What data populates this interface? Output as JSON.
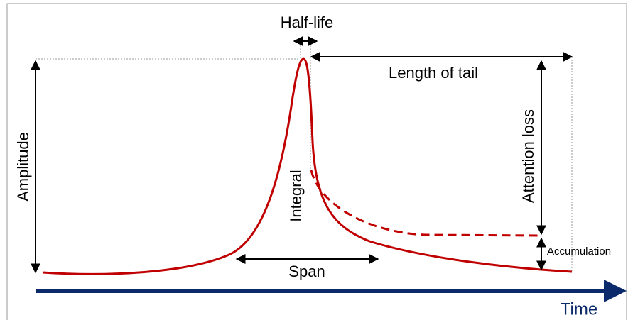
{
  "labels": {
    "half_life": "Half-life",
    "length_of_tail": "Length of tail",
    "amplitude": "Amplitude",
    "attention_loss": "Attention loss",
    "integral": "Integral",
    "span": "Span",
    "accumulation": "Accumulation",
    "time": "Time"
  }
}
